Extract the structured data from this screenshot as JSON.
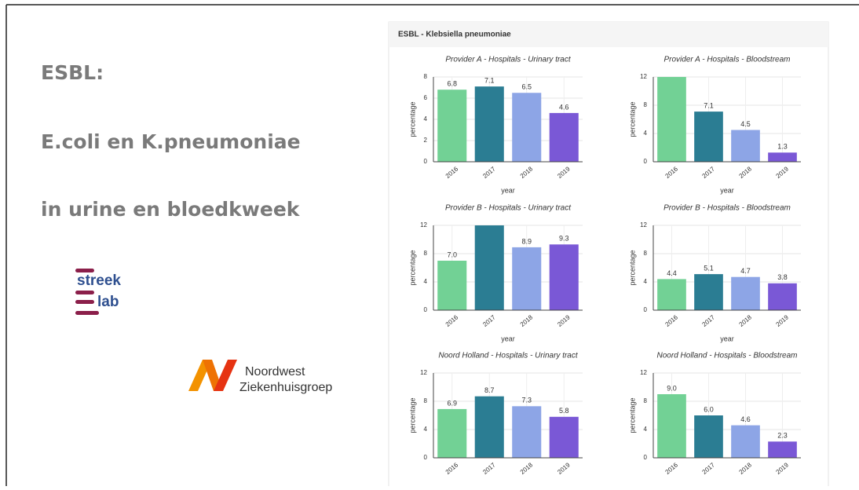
{
  "slide": {
    "lines": [
      "ESBL:",
      "E.coli en K.pneumoniae",
      "in urine en bloedkweek"
    ],
    "logo_streeklab": [
      "streek",
      "lab"
    ],
    "logo_nwz": [
      "Noordwest",
      "Ziekenhuisgroep"
    ],
    "panel_title": "ESBL - Klebsiella pneumoniae"
  },
  "chart_data": [
    {
      "type": "bar",
      "title": "Provider A - Hospitals - Urinary tract",
      "xlabel": "year",
      "ylabel": "percentage",
      "categories": [
        "2016",
        "2017",
        "2018",
        "2019"
      ],
      "values": [
        6.8,
        7.1,
        6.5,
        4.6
      ],
      "value_labels": [
        "6.8",
        "7.1",
        "6.5",
        "4.6"
      ],
      "colors": [
        "#72d195",
        "#2b7d93",
        "#8da5e6",
        "#7a58d6"
      ],
      "ylim": [
        0,
        8
      ],
      "yticks": [
        0,
        2,
        4,
        6,
        8
      ],
      "grid": true
    },
    {
      "type": "bar",
      "title": "Provider A - Hospitals - Bloodstream",
      "xlabel": "year",
      "ylabel": "percentage",
      "categories": [
        "2016",
        "2017",
        "2018",
        "2019"
      ],
      "values": [
        12,
        7.1,
        4.5,
        1.3
      ],
      "value_labels": [
        null,
        "7.1",
        "4.5",
        "1.3"
      ],
      "colors": [
        "#72d195",
        "#2b7d93",
        "#8da5e6",
        "#7a58d6"
      ],
      "ylim": [
        0,
        12
      ],
      "yticks": [
        0,
        4,
        8,
        12
      ],
      "grid": true
    },
    {
      "type": "bar",
      "title": "Provider B - Hospitals - Urinary tract",
      "xlabel": "year",
      "ylabel": "percentage",
      "categories": [
        "2016",
        "2017",
        "2018",
        "2019"
      ],
      "values": [
        7.0,
        12,
        8.9,
        9.3
      ],
      "value_labels": [
        "7.0",
        null,
        "8.9",
        "9.3"
      ],
      "colors": [
        "#72d195",
        "#2b7d93",
        "#8da5e6",
        "#7a58d6"
      ],
      "ylim": [
        0,
        12
      ],
      "yticks": [
        0,
        4,
        8,
        12
      ],
      "grid": true
    },
    {
      "type": "bar",
      "title": "Provider B - Hospitals - Bloodstream",
      "xlabel": "year",
      "ylabel": "percentage",
      "categories": [
        "2016",
        "2017",
        "2018",
        "2019"
      ],
      "values": [
        4.4,
        5.1,
        4.7,
        3.8
      ],
      "value_labels": [
        "4.4",
        "5.1",
        "4.7",
        "3.8"
      ],
      "colors": [
        "#72d195",
        "#2b7d93",
        "#8da5e6",
        "#7a58d6"
      ],
      "ylim": [
        0,
        12
      ],
      "yticks": [
        0,
        4,
        8,
        12
      ],
      "grid": true
    },
    {
      "type": "bar",
      "title": "Noord Holland - Hospitals - Urinary tract",
      "ylabel": "percentage",
      "categories": [
        "2016",
        "2017",
        "2018",
        "2019"
      ],
      "values": [
        6.9,
        8.7,
        7.3,
        5.8
      ],
      "value_labels": [
        "6.9",
        "8.7",
        "7.3",
        "5.8"
      ],
      "colors": [
        "#72d195",
        "#2b7d93",
        "#8da5e6",
        "#7a58d6"
      ],
      "ylim": [
        0,
        12
      ],
      "yticks": [
        0,
        4,
        8,
        12
      ],
      "grid": true
    },
    {
      "type": "bar",
      "title": "Noord Holland - Hospitals - Bloodstream",
      "ylabel": "percentage",
      "categories": [
        "2016",
        "2017",
        "2018",
        "2019"
      ],
      "values": [
        9.0,
        6.0,
        4.6,
        2.3
      ],
      "value_labels": [
        "9.0",
        "6.0",
        "4.6",
        "2.3"
      ],
      "colors": [
        "#72d195",
        "#2b7d93",
        "#8da5e6",
        "#7a58d6"
      ],
      "ylim": [
        0,
        12
      ],
      "yticks": [
        0,
        4,
        8,
        12
      ],
      "grid": true
    }
  ]
}
